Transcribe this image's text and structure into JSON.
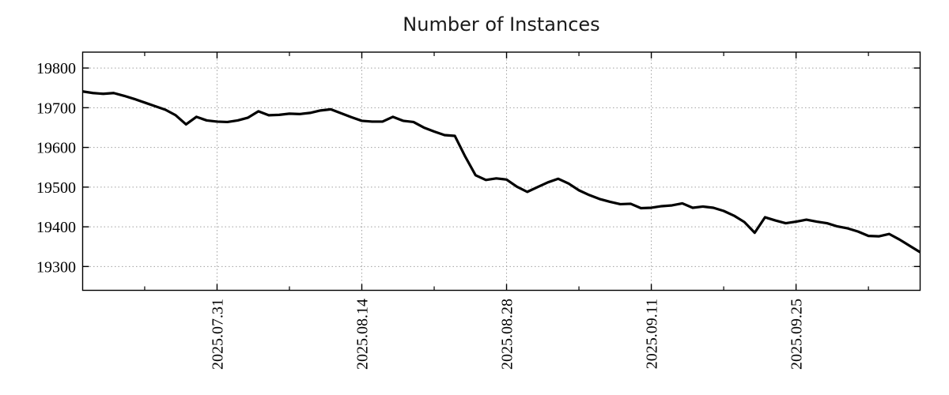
{
  "chart_data": {
    "type": "line",
    "title": "Number of Instances",
    "legend": "none",
    "grid": {
      "color": "#a0a0a0",
      "style": "dotted",
      "on": true
    },
    "line_color": "#000000",
    "line_width": 3.2,
    "x_axis": {
      "domain_days": [
        0,
        81
      ],
      "major_ticks": [
        {
          "label": "2025.07.31",
          "day": 13
        },
        {
          "label": "2025.08.14",
          "day": 27
        },
        {
          "label": "2025.08.28",
          "day": 41
        },
        {
          "label": "2025.09.11",
          "day": 55
        },
        {
          "label": "2025.09.25",
          "day": 69
        }
      ],
      "minor_tick_days": [
        6,
        20,
        34,
        48,
        62,
        76
      ]
    },
    "y_axis": {
      "lim": [
        19240,
        19840
      ],
      "ticks": [
        19300,
        19400,
        19500,
        19600,
        19700,
        19800
      ]
    },
    "series": [
      {
        "name": "instances",
        "color": "#000000",
        "values": [
          19741,
          19737,
          19735,
          19737,
          19730,
          19722,
          19713,
          19704,
          19695,
          19681,
          19658,
          19677,
          19668,
          19665,
          19664,
          19668,
          19675,
          19691,
          19681,
          19682,
          19685,
          19684,
          19687,
          19693,
          19696,
          19686,
          19676,
          19667,
          19665,
          19665,
          19677,
          19667,
          19664,
          19650,
          19640,
          19631,
          19629,
          19577,
          19530,
          19518,
          19522,
          19519,
          19501,
          19488,
          19500,
          19512,
          19521,
          19509,
          19492,
          19480,
          19470,
          19463,
          19457,
          19458,
          19447,
          19448,
          19452,
          19454,
          19459,
          19448,
          19451,
          19448,
          19440,
          19428,
          19412,
          19385,
          19424,
          19416,
          19409,
          19413,
          19418,
          19413,
          19409,
          19401,
          19396,
          19388,
          19377,
          19376,
          19382,
          19368,
          19352,
          19336
        ]
      }
    ]
  }
}
